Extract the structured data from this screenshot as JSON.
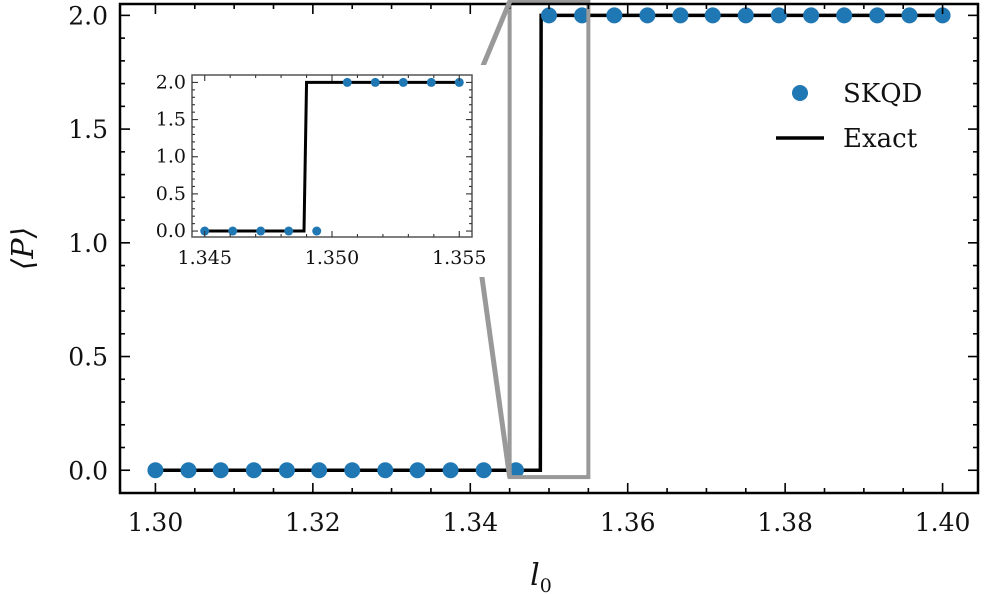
{
  "chart_data": [
    {
      "type": "scatter+line",
      "xlabel": "l",
      "xlabel_sub": "0",
      "ylabel": "⟨P⟩",
      "xlim": [
        1.2955,
        1.4045
      ],
      "ylim": [
        -0.1,
        2.05
      ],
      "xticks": [
        "1.30",
        "1.32",
        "1.34",
        "1.36",
        "1.38",
        "1.40"
      ],
      "yticks": [
        "0.0",
        "0.5",
        "1.0",
        "1.5",
        "2.0"
      ],
      "legend": {
        "position": "upper-right",
        "entries": [
          "SKQD",
          "Exact"
        ]
      },
      "colors": {
        "skqd": "#1f77b4",
        "exact": "#000000",
        "zoom": "#999999"
      },
      "series": [
        {
          "name": "SKQD",
          "kind": "scatter",
          "x": [
            1.3,
            1.3042,
            1.3083,
            1.3125,
            1.3167,
            1.3208,
            1.325,
            1.3292,
            1.3333,
            1.3375,
            1.3417,
            1.3458,
            1.35,
            1.3542,
            1.3583,
            1.3625,
            1.3667,
            1.3708,
            1.375,
            1.3792,
            1.3833,
            1.3875,
            1.3917,
            1.3958,
            1.4
          ],
          "y": [
            0,
            0,
            0,
            0,
            0,
            0,
            0,
            0,
            0,
            0,
            0,
            0,
            2,
            2,
            2,
            2,
            2,
            2,
            2,
            2,
            2,
            2,
            2,
            2,
            2
          ]
        },
        {
          "name": "Exact",
          "kind": "line",
          "x": [
            1.3,
            1.3489,
            1.349,
            1.4
          ],
          "y": [
            0,
            0,
            2,
            2
          ]
        }
      ],
      "zoom_region": {
        "x": [
          1.345,
          1.355
        ],
        "y": [
          -0.03,
          2.06
        ]
      }
    },
    {
      "type": "scatter+line",
      "role": "inset",
      "xlim": [
        1.3445,
        1.3555
      ],
      "ylim": [
        -0.08,
        2.1
      ],
      "xticks": [
        "1.345",
        "1.350",
        "1.355"
      ],
      "yticks": [
        "0.0",
        "0.5",
        "1.0",
        "1.5",
        "2.0"
      ],
      "series": [
        {
          "name": "SKQD",
          "kind": "scatter",
          "x": [
            1.345,
            1.3461,
            1.3472,
            1.3483,
            1.3494,
            1.3506,
            1.3517,
            1.3528,
            1.3539,
            1.355
          ],
          "y": [
            0,
            0,
            0,
            0,
            0,
            2,
            2,
            2,
            2,
            2
          ]
        },
        {
          "name": "Exact",
          "kind": "line",
          "x": [
            1.345,
            1.3489,
            1.349,
            1.355
          ],
          "y": [
            0,
            0,
            2,
            2
          ]
        }
      ]
    }
  ]
}
